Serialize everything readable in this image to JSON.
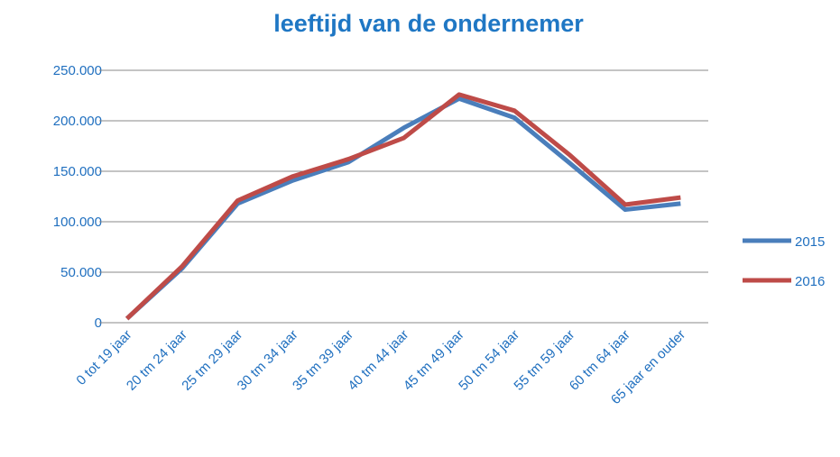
{
  "chart_data": {
    "type": "line",
    "title": "leeftijd van de ondernemer",
    "categories": [
      "0 tot 19 jaar",
      "20 tm 24 jaar",
      "25 tm 29 jaar",
      "30 tm 34 jaar",
      "35 tm 39 jaar",
      "40 tm 44 jaar",
      "45 tm 49 jaar",
      "50 tm 54 jaar",
      "55 tm 59 jaar",
      "60 tm 64 jaar",
      "65 jaar en ouder"
    ],
    "series": [
      {
        "name": "2015",
        "color": "#4a7ebb",
        "values": [
          4000,
          54000,
          118000,
          141000,
          159000,
          193000,
          222000,
          203000,
          158000,
          112000,
          118000
        ]
      },
      {
        "name": "2016",
        "color": "#be4b48",
        "values": [
          4000,
          56000,
          121000,
          145000,
          162000,
          183000,
          226000,
          210000,
          166000,
          117000,
          124000
        ]
      }
    ],
    "ylim": [
      0,
      250000
    ],
    "yticks": [
      0,
      {
        "value": 50000,
        "label": "50.000"
      },
      {
        "value": 100000,
        "label": "100.000"
      },
      {
        "value": 150000,
        "label": "150.000"
      },
      {
        "value": 200000,
        "label": "200.000"
      },
      {
        "value": 250000,
        "label": "250.000"
      }
    ],
    "grid": true,
    "legend": "right"
  }
}
